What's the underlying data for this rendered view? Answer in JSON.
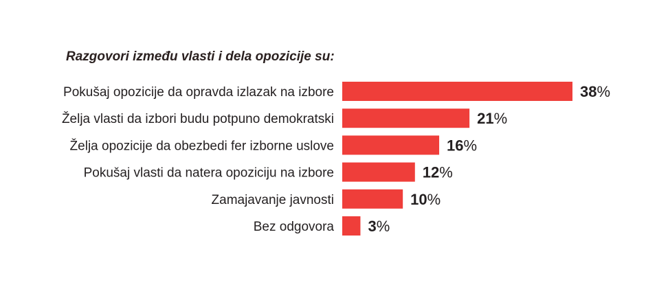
{
  "chart_data": {
    "type": "bar",
    "orientation": "horizontal",
    "title": "Razgovori između vlasti i dela opozicije su:",
    "categories": [
      "Pokušaj opozicije da opravda izlazak na izbore",
      "Želja vlasti da izbori budu potpuno demokratski",
      "Želja opozicije da obezbedi fer izborne uslove",
      "Pokušaj vlasti da natera opoziciju na izbore",
      "Zamajavanje javnosti",
      "Bez odgovora"
    ],
    "values": [
      38,
      21,
      16,
      12,
      10,
      3
    ],
    "value_suffix": "%",
    "xlim": [
      0,
      38
    ],
    "grid": false,
    "legend": "none",
    "bar_color": "#ef3e3a",
    "text_color": "#231f20"
  }
}
